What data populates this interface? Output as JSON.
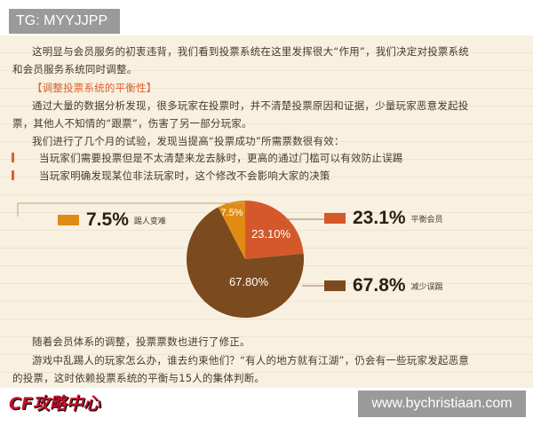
{
  "header_tag": "TG: MYYJJPP",
  "watermark": "www.bychristiaan.com",
  "paragraphs": {
    "p1_line1": "这明显与会员服务的初衷违背，我们看到投票系统在这里发挥很大“作用”，我们决定对投票系统",
    "p1_line2": "和会员服务系统同时调整。",
    "section_heading": "【调整投票系统的平衡性】",
    "p2_line1": "通过大量的数据分析发现，很多玩家在投票时，并不清楚投票原因和证据，少量玩家恶意发起投",
    "p2_line2": "票，其他人不知情的“跟票”，伤害了另一部分玩家。",
    "p3": "我们进行了几个月的试验，发现当提高“投票成功”所需票数很有效：",
    "bullet1": "当玩家们需要投票但是不太清楚来龙去脉时，更高的通过门槛可以有效防止误踢",
    "bullet2": "当玩家明确发现某位非法玩家时，这个修改不会影响大家的决策",
    "p4": "随着会员体系的调整，投票票数也进行了修正。",
    "p5_line1": "游戏中乱踢人的玩家怎么办，谁去约束他们？“有人的地方就有江湖”，仍会有一些玩家发起恶意",
    "p5_line2": "的投票，这时依赖投票系统的平衡与15人的集体判断。"
  },
  "logo_text": "CF攻略中心",
  "chart_data": {
    "type": "pie",
    "slices": [
      {
        "label": "平衡会员",
        "value": 23.1,
        "slice_label": "23.10%",
        "legend_value": "23.1%",
        "color": "#d4582a"
      },
      {
        "label": "减少误踢",
        "value": 67.8,
        "slice_label": "67.80%",
        "legend_value": "67.8%",
        "color": "#7b4a1e"
      },
      {
        "label": "踢人变难",
        "value": 7.5,
        "slice_label": "7.5%",
        "legend_value": "7.5%",
        "color": "#e08c14"
      }
    ],
    "start": "top",
    "direction": "clockwise"
  }
}
